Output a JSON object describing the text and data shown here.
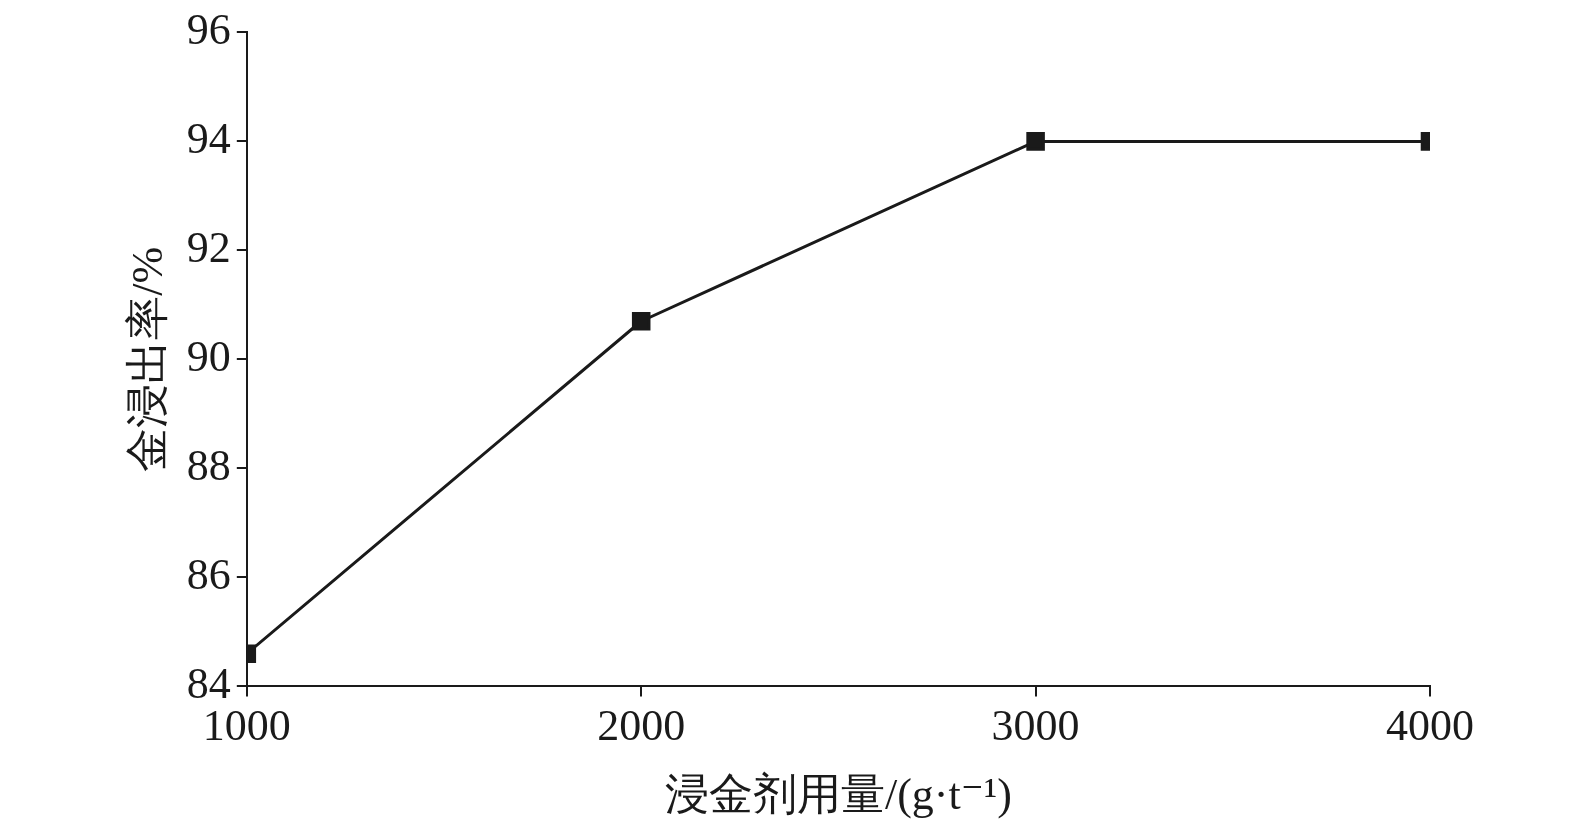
{
  "chart_data": {
    "type": "line",
    "xlabel": "浸金剂用量/(g·t⁻¹)",
    "ylabel": "金浸出率/%",
    "x": [
      1000,
      2000,
      3000,
      4000
    ],
    "series": [
      {
        "color": "#1a1a1a",
        "values": [
          84.6,
          90.7,
          94,
          94
        ]
      }
    ],
    "xlim": [
      1000,
      4000
    ],
    "xticks": [
      1000,
      2000,
      3000,
      4000
    ],
    "ylim": [
      84,
      96
    ],
    "yticks": [
      84,
      86,
      88,
      90,
      92,
      94,
      96
    ],
    "marker": "square",
    "line_style": "solid",
    "grid": false,
    "legend": false
  }
}
